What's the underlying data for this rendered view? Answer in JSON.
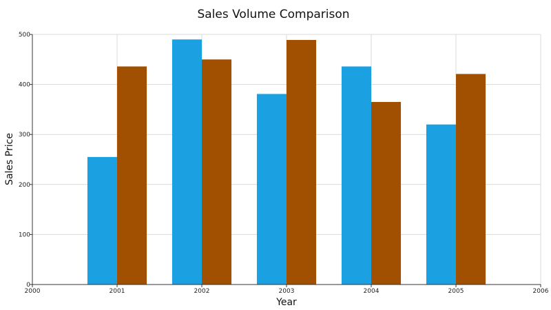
{
  "chart_data": {
    "type": "bar",
    "title": "Sales Volume Comparison",
    "xlabel": "Year",
    "ylabel": "Sales Price",
    "x": [
      2001,
      2002,
      2003,
      2004,
      2005
    ],
    "xlim": [
      2000,
      2006
    ],
    "x_ticks": [
      "2000",
      "2001",
      "2002",
      "2003",
      "2004",
      "2005",
      "2006"
    ],
    "ylim": [
      0,
      500
    ],
    "y_ticks": [
      "0",
      "100",
      "200",
      "300",
      "400",
      "500"
    ],
    "grid": true,
    "legend": "none",
    "series": [
      {
        "color": "#1ba1e2",
        "values": [
          255,
          490,
          381,
          436,
          320
        ]
      },
      {
        "color": "#a05000",
        "values": [
          436,
          450,
          489,
          365,
          421
        ]
      }
    ]
  }
}
